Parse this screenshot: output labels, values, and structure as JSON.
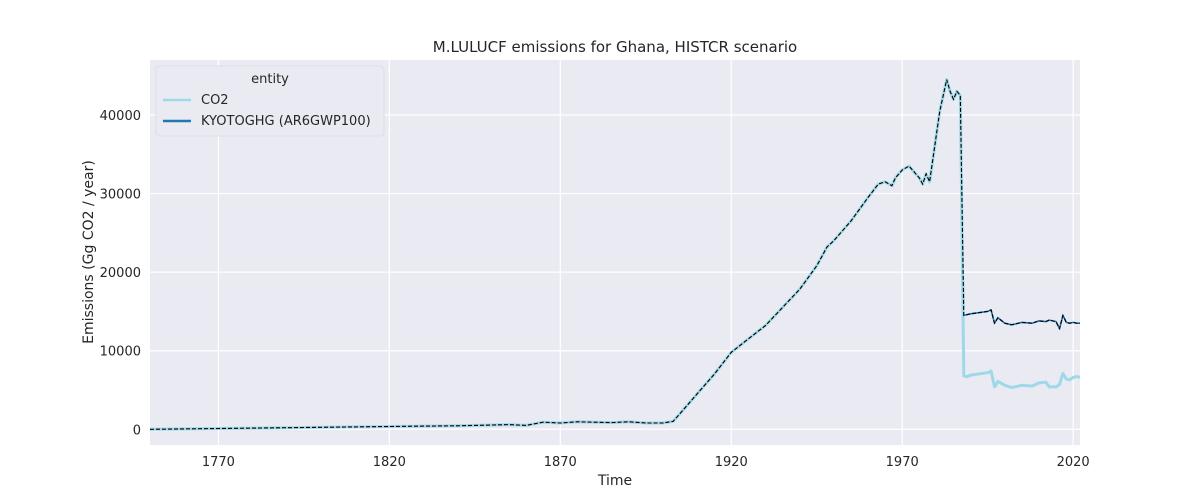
{
  "chart_data": {
    "type": "line",
    "title": "M.LULUCF emissions for Ghana, HISTCR scenario",
    "xlabel": "Time",
    "ylabel": "Emissions (Gg CO2 / year)",
    "xlim": [
      1750,
      2022
    ],
    "ylim": [
      -2000,
      47000
    ],
    "xticks": [
      1770,
      1820,
      1870,
      1920,
      1970,
      2020
    ],
    "yticks": [
      0,
      10000,
      20000,
      30000,
      40000
    ],
    "grid": true,
    "legend": {
      "title": "entity",
      "position": "top-left",
      "entries": [
        "CO2",
        "KYOTOGHG (AR6GWP100)"
      ]
    },
    "series": [
      {
        "name": "CO2",
        "color": "#9fd8e8",
        "x": [
          1750,
          1760,
          1770,
          1780,
          1790,
          1800,
          1810,
          1820,
          1830,
          1840,
          1850,
          1855,
          1860,
          1865,
          1870,
          1875,
          1880,
          1885,
          1890,
          1895,
          1900,
          1903,
          1905,
          1910,
          1915,
          1920,
          1925,
          1930,
          1935,
          1940,
          1945,
          1948,
          1950,
          1955,
          1960,
          1963,
          1965,
          1967,
          1968,
          1970,
          1972,
          1975,
          1976,
          1977,
          1978,
          1980,
          1981,
          1983,
          1984,
          1985,
          1986,
          1987,
          1988,
          1989,
          1990,
          1995,
          1996,
          1997,
          1998,
          2000,
          2002,
          2005,
          2008,
          2010,
          2012,
          2013,
          2015,
          2016,
          2017,
          2018,
          2019,
          2020,
          2021,
          2022
        ],
        "values": [
          0,
          50,
          100,
          150,
          200,
          250,
          300,
          350,
          400,
          450,
          550,
          600,
          500,
          900,
          800,
          950,
          900,
          850,
          950,
          800,
          800,
          1000,
          2000,
          4500,
          7000,
          9800,
          11500,
          13200,
          15500,
          17800,
          20800,
          23200,
          24000,
          26500,
          29500,
          31200,
          31500,
          31000,
          32000,
          33000,
          33500,
          32000,
          31200,
          32500,
          31500,
          37500,
          40500,
          44500,
          43000,
          42000,
          43000,
          42500,
          6800,
          6700,
          6900,
          7200,
          7400,
          5400,
          6100,
          5600,
          5300,
          5600,
          5500,
          5900,
          6000,
          5400,
          5400,
          5700,
          7100,
          6400,
          6300,
          6600,
          6700,
          6600
        ]
      },
      {
        "name": "KYOTOGHG (AR6GWP100)",
        "color": "#1f77b4",
        "x": [
          1750,
          1760,
          1770,
          1780,
          1790,
          1800,
          1810,
          1820,
          1830,
          1840,
          1850,
          1855,
          1860,
          1865,
          1870,
          1875,
          1880,
          1885,
          1890,
          1895,
          1900,
          1903,
          1905,
          1910,
          1915,
          1920,
          1925,
          1930,
          1935,
          1940,
          1945,
          1948,
          1950,
          1955,
          1960,
          1963,
          1965,
          1967,
          1968,
          1970,
          1972,
          1975,
          1976,
          1977,
          1978,
          1980,
          1981,
          1983,
          1984,
          1985,
          1986,
          1987,
          1988,
          1989,
          1990,
          1995,
          1996,
          1997,
          1998,
          2000,
          2002,
          2005,
          2008,
          2010,
          2012,
          2013,
          2015,
          2016,
          2017,
          2018,
          2019,
          2020,
          2021,
          2022
        ],
        "values": [
          0,
          50,
          100,
          150,
          200,
          250,
          300,
          350,
          400,
          450,
          550,
          600,
          500,
          900,
          800,
          950,
          900,
          850,
          950,
          800,
          800,
          1000,
          2000,
          4500,
          7000,
          9800,
          11500,
          13200,
          15500,
          17800,
          20800,
          23200,
          24000,
          26500,
          29500,
          31200,
          31500,
          31000,
          32000,
          33000,
          33500,
          32000,
          31200,
          32500,
          31500,
          37500,
          40500,
          44500,
          43000,
          42000,
          43000,
          42500,
          14500,
          14600,
          14700,
          15000,
          15200,
          13500,
          14200,
          13500,
          13300,
          13600,
          13500,
          13800,
          13700,
          13900,
          13700,
          12800,
          14500,
          13600,
          13500,
          13600,
          13500,
          13500
        ]
      }
    ]
  }
}
